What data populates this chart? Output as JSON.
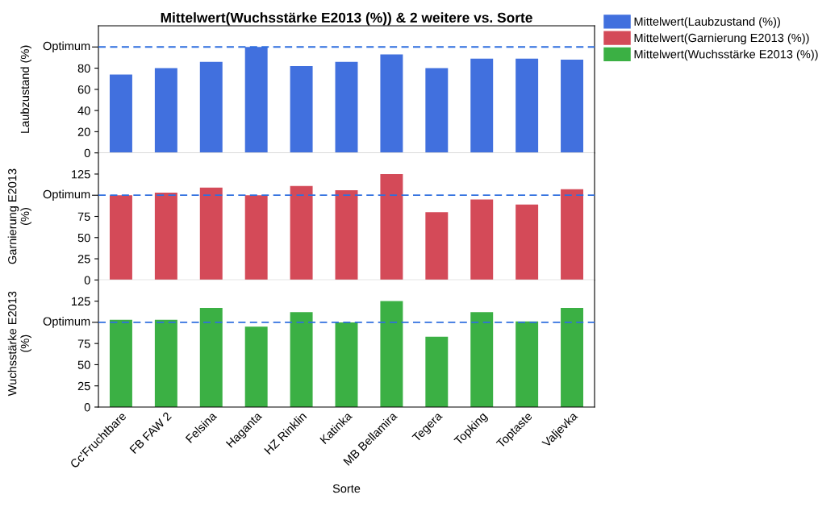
{
  "chart_data": [
    {
      "type": "bar",
      "title": "Mittelwert(Wuchsstärke E2013 (%)) & 2 weitere vs. Sorte",
      "ylabel": "Laubzustand (%)",
      "series": [
        {
          "name": "Mittelwert(Laubzustand (%))",
          "color": "#4170de",
          "values": [
            74,
            80,
            86,
            100,
            82,
            86,
            93,
            80,
            89,
            89,
            88
          ]
        }
      ],
      "ylim": [
        0,
        120
      ],
      "yticks": [
        0,
        20,
        40,
        60,
        80
      ],
      "ref_lines": [
        {
          "axis": "y",
          "value": 100,
          "label": "Optimum",
          "color": "#2f6fdf",
          "line_style": "dashed"
        }
      ],
      "legend": "top right",
      "tick_labels": "y"
    },
    {
      "type": "bar",
      "ylabel": "Garnierung E2013 (%)",
      "series": [
        {
          "name": "Mittelwert(Garnierung E2013 (%))",
          "color": "#d44a58",
          "values": [
            100,
            103,
            109,
            100,
            111,
            106,
            125,
            80,
            95,
            89,
            107
          ]
        }
      ],
      "ylim": [
        0,
        150
      ],
      "yticks": [
        0,
        25,
        50,
        75,
        125
      ],
      "ref_lines": [
        {
          "axis": "y",
          "value": 100,
          "label": "Optimum",
          "color": "#2f6fdf",
          "line_style": "dashed"
        }
      ],
      "tick_labels": "y"
    },
    {
      "type": "bar",
      "ylabel": "Wuchsstärke E2013 (%)",
      "xlabel": "Sorte",
      "categories": [
        "Cc'Fruchtbare",
        "FB FAW 2",
        "Felsina",
        "Haganta",
        "HZ Rinklin",
        "Katinka",
        "MB Bellamira",
        "Tegera",
        "Topking",
        "Toptaste",
        "Valjevka"
      ],
      "series": [
        {
          "name": "Mittelwert(Wuchsstärke E2013 (%))",
          "color": "#3bb044",
          "values": [
            103,
            103,
            117,
            95,
            112,
            100,
            125,
            83,
            112,
            101,
            117
          ]
        }
      ],
      "ylim": [
        0,
        150
      ],
      "yticks": [
        0,
        25,
        50,
        75,
        125
      ],
      "ref_lines": [
        {
          "axis": "y",
          "value": 100,
          "label": "Optimum",
          "color": "#2f6fdf",
          "line_style": "dashed"
        }
      ]
    }
  ]
}
